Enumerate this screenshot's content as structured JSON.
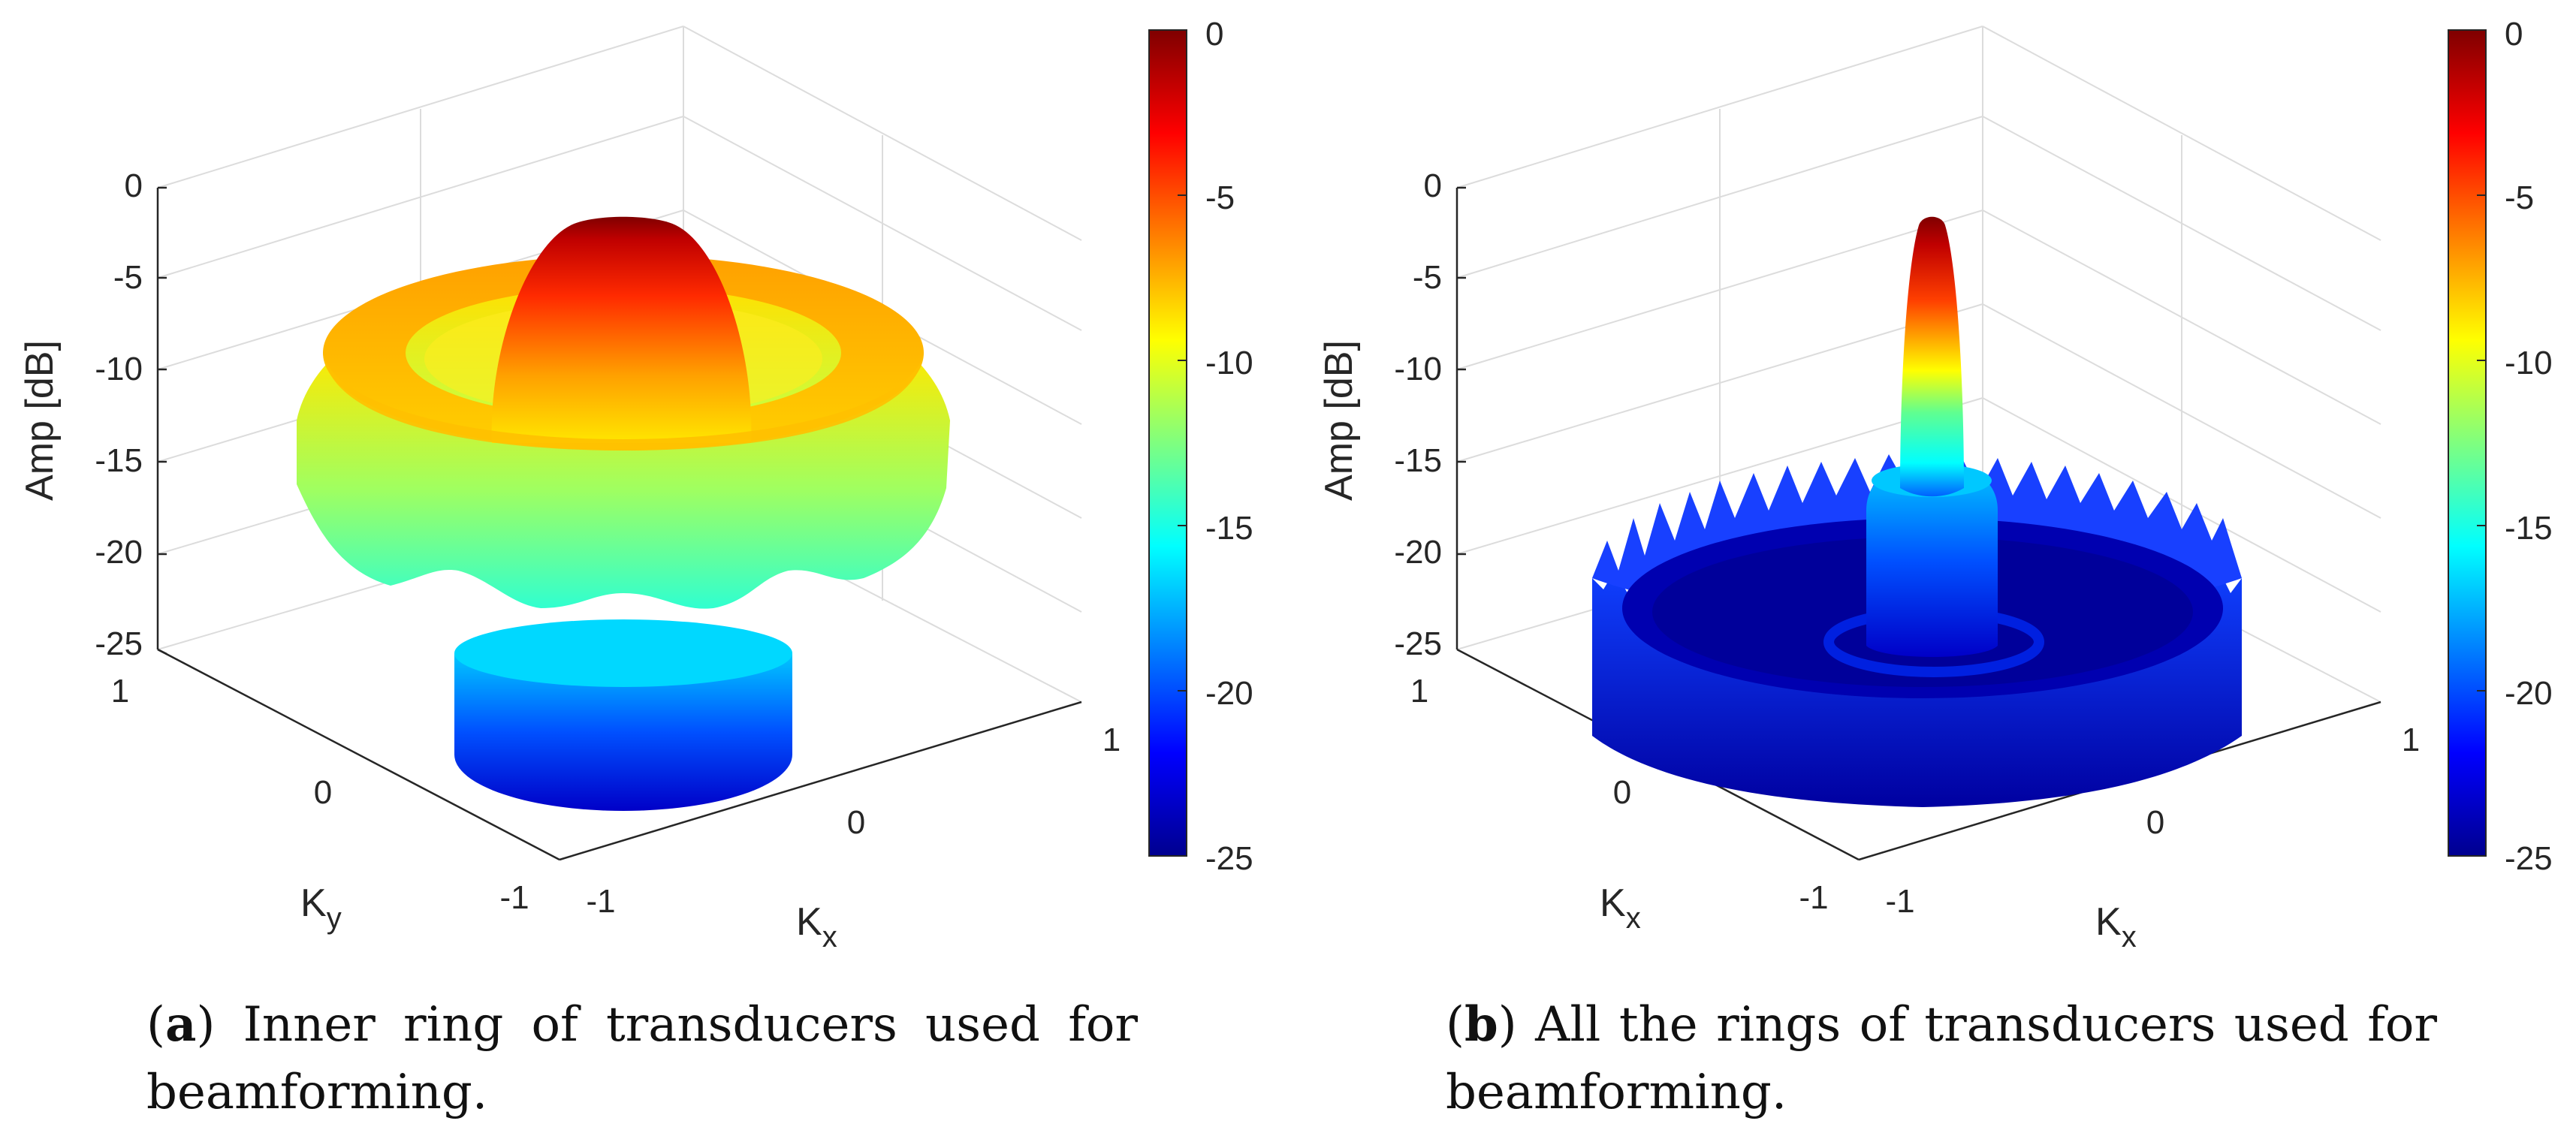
{
  "chart_data": [
    {
      "type": "surface3d",
      "caption_letter": "a",
      "caption_text": ") Inner ring of transducers used for beamforming.",
      "z_label": "Amp [dB]",
      "x_label_main": "K",
      "x_label_sub": "x",
      "y_label_main": "K",
      "y_label_sub": "y",
      "zlim": [
        -25,
        0
      ],
      "z_ticks": [
        "0",
        "-5",
        "-10",
        "-15",
        "-20",
        "-25"
      ],
      "kx_ticks": [
        "-1",
        "0",
        "1"
      ],
      "ky_ticks": [
        "-1",
        "0",
        "1"
      ],
      "colorbar_ticks": [
        "0",
        "-5",
        "-10",
        "-15",
        "-20",
        "-25"
      ],
      "colormap": "jet",
      "features": {
        "main_lobe_peak_db": 0,
        "ring_sidelobe_db": -10,
        "floor_db": -25
      }
    },
    {
      "type": "surface3d",
      "caption_letter": "b",
      "caption_text": ") All the rings of transducers used for beamforming.",
      "z_label": "Amp [dB]",
      "x_label_main": "K",
      "x_label_sub": "x",
      "y_label_main": "K",
      "y_label_sub": "x",
      "zlim": [
        -25,
        0
      ],
      "z_ticks": [
        "0",
        "-5",
        "-10",
        "-15",
        "-20",
        "-25"
      ],
      "kx_ticks": [
        "-1",
        "0",
        "1"
      ],
      "ky_ticks": [
        "-1",
        "0",
        "1"
      ],
      "colorbar_ticks": [
        "0",
        "-5",
        "-10",
        "-15",
        "-20",
        "-25"
      ],
      "colormap": "jet",
      "features": {
        "main_lobe_peak_db": -1,
        "grating_ring_db": -17,
        "floor_db": -25
      }
    }
  ]
}
